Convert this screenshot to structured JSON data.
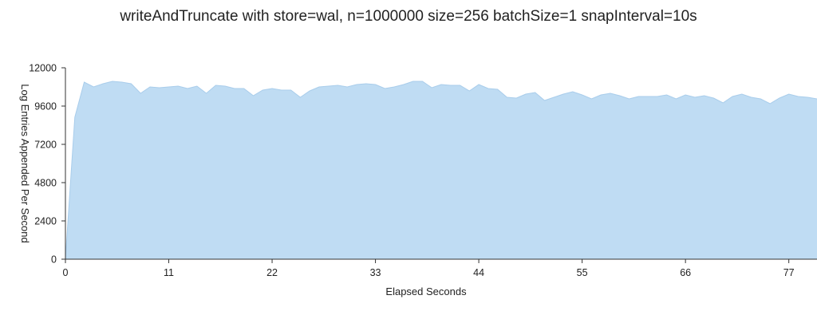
{
  "chart_data": {
    "type": "area",
    "title": "writeAndTruncate with store=wal, n=1000000 size=256 batchSize=1 snapInterval=10s",
    "xlabel": "Elapsed Seconds",
    "ylabel": "Log Entries Appended Per Second",
    "xlim": [
      0,
      80
    ],
    "ylim": [
      0,
      12000
    ],
    "x_ticks": [
      0,
      11,
      22,
      33,
      44,
      55,
      66,
      77
    ],
    "y_ticks": [
      0,
      2400,
      4800,
      7200,
      9600,
      12000
    ],
    "grid": false,
    "legend": "none",
    "colors": {
      "fill": "#bfdcf3",
      "stroke": "#a9cdeb",
      "axis": "#333333"
    },
    "series": [
      {
        "x": [
          0,
          1,
          2,
          3,
          4,
          5,
          6,
          7,
          8,
          9,
          10,
          11,
          12,
          13,
          14,
          15,
          16,
          17,
          18,
          19,
          20,
          21,
          22,
          23,
          24,
          25,
          26,
          27,
          28,
          29,
          30,
          31,
          32,
          33,
          34,
          35,
          36,
          37,
          38,
          39,
          40,
          41,
          42,
          43,
          44,
          45,
          46,
          47,
          48,
          49,
          50,
          51,
          52,
          53,
          54,
          55,
          56,
          57,
          58,
          59,
          60,
          61,
          62,
          63,
          64,
          65,
          66,
          67,
          68,
          69,
          70,
          71,
          72,
          73,
          74,
          75,
          76,
          77,
          78,
          79,
          80
        ],
        "values": [
          0,
          8900,
          11100,
          10800,
          11000,
          11150,
          11100,
          11000,
          10400,
          10800,
          10750,
          10800,
          10850,
          10700,
          10850,
          10400,
          10900,
          10850,
          10700,
          10700,
          10250,
          10600,
          10700,
          10600,
          10600,
          10150,
          10550,
          10800,
          10850,
          10900,
          10800,
          10950,
          11000,
          10950,
          10700,
          10800,
          10950,
          11150,
          11150,
          10750,
          10950,
          10900,
          10900,
          10550,
          10950,
          10700,
          10650,
          10150,
          10100,
          10350,
          10450,
          9950,
          10150,
          10350,
          10500,
          10300,
          10050,
          10300,
          10400,
          10250,
          10050,
          10200,
          10200,
          10200,
          10300,
          10050,
          10300,
          10150,
          10250,
          10100,
          9800,
          10200,
          10350,
          10150,
          10050,
          9750,
          10100,
          10350,
          10200,
          10150,
          10050
        ]
      }
    ]
  }
}
